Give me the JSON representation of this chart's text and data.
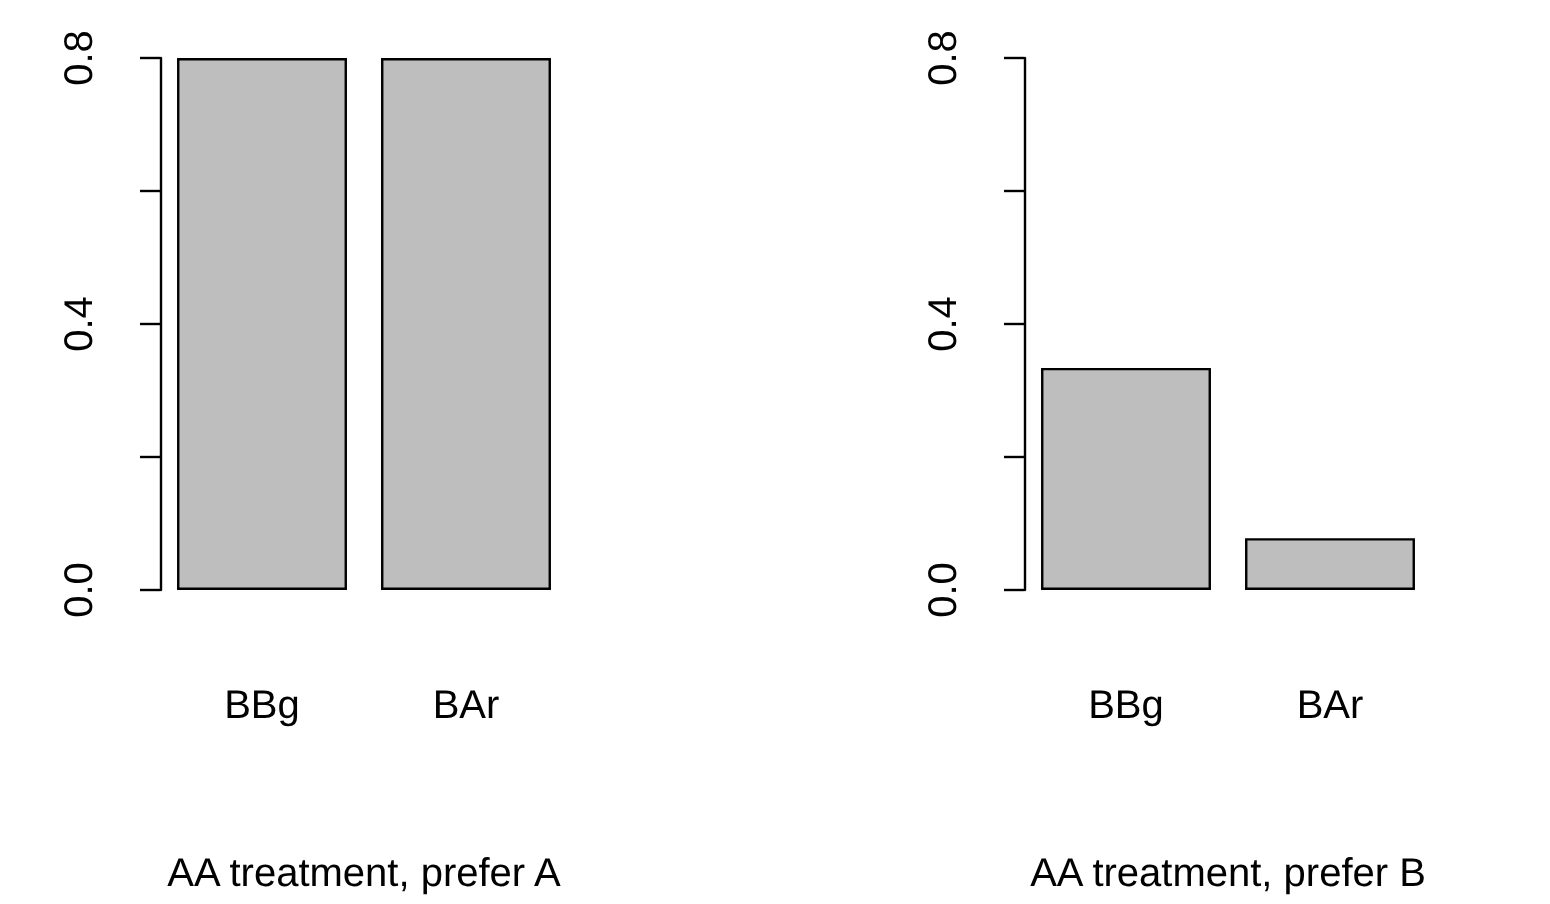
{
  "chart_data": [
    {
      "type": "bar",
      "xlabel": "AA treatment, prefer A",
      "categories": [
        "BBg",
        "BAr"
      ],
      "values": [
        0.8,
        0.8
      ],
      "color": "#bebebe",
      "ylim": [
        0,
        0.8
      ],
      "yticks": [
        {
          "value": 0,
          "label": "0.0"
        },
        {
          "value": 0.2,
          "label": null
        },
        {
          "value": 0.4,
          "label": "0.4"
        },
        {
          "value": 0.6,
          "label": null
        },
        {
          "value": 0.8,
          "label": "0.8"
        }
      ]
    },
    {
      "type": "bar",
      "xlabel": "AA treatment, prefer B",
      "categories": [
        "BBg",
        "BAr"
      ],
      "values": [
        0.334,
        0.078
      ],
      "color": "#bebebe",
      "ylim": [
        0,
        0.8
      ],
      "yticks": [
        {
          "value": 0,
          "label": "0.0"
        },
        {
          "value": 0.2,
          "label": null
        },
        {
          "value": 0.4,
          "label": "0.4"
        },
        {
          "value": 0.6,
          "label": null
        },
        {
          "value": 0.8,
          "label": "0.8"
        }
      ]
    }
  ]
}
